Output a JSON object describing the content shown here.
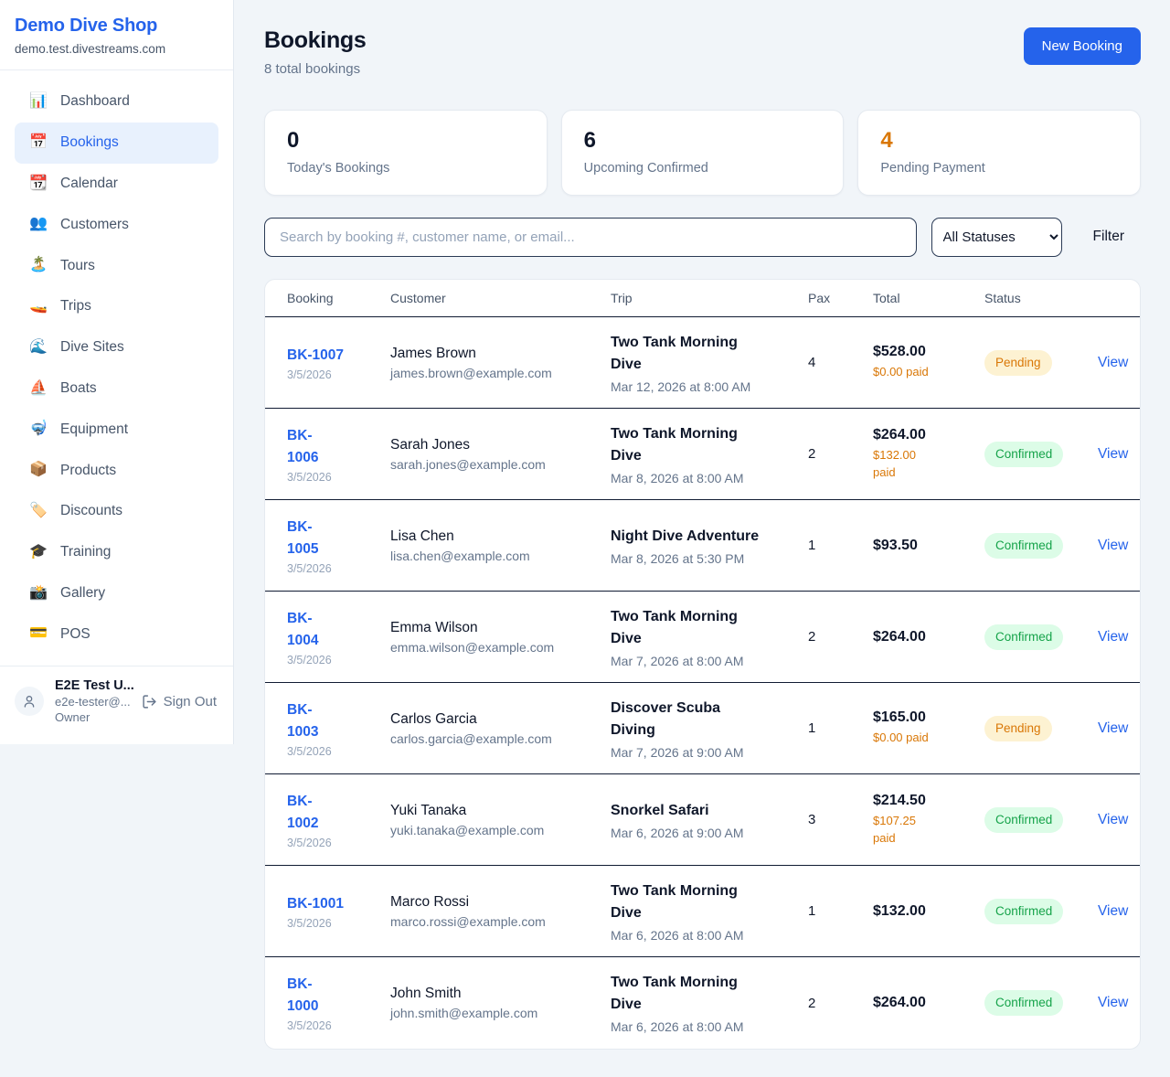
{
  "sidebar": {
    "brand": "Demo Dive Shop",
    "domain": "demo.test.divestreams.com",
    "nav": [
      {
        "label": "Dashboard",
        "icon": "bar-chart-icon",
        "glyph": "📊",
        "active": false
      },
      {
        "label": "Bookings",
        "icon": "calendar-date-icon",
        "glyph": "📅",
        "active": true
      },
      {
        "label": "Calendar",
        "icon": "tear-off-calendar-icon",
        "glyph": "📆",
        "active": false
      },
      {
        "label": "Customers",
        "icon": "people-icon",
        "glyph": "👥",
        "active": false
      },
      {
        "label": "Tours",
        "icon": "island-icon",
        "glyph": "🏝️",
        "active": false
      },
      {
        "label": "Trips",
        "icon": "speedboat-icon",
        "glyph": "🚤",
        "active": false
      },
      {
        "label": "Dive Sites",
        "icon": "wave-icon",
        "glyph": "🌊",
        "active": false
      },
      {
        "label": "Boats",
        "icon": "sailboat-icon",
        "glyph": "⛵",
        "active": false
      },
      {
        "label": "Equipment",
        "icon": "diving-mask-icon",
        "glyph": "🤿",
        "active": false
      },
      {
        "label": "Products",
        "icon": "package-icon",
        "glyph": "📦",
        "active": false
      },
      {
        "label": "Discounts",
        "icon": "tag-icon",
        "glyph": "🏷️",
        "active": false
      },
      {
        "label": "Training",
        "icon": "graduation-cap-icon",
        "glyph": "🎓",
        "active": false
      },
      {
        "label": "Gallery",
        "icon": "camera-icon",
        "glyph": "📸",
        "active": false
      },
      {
        "label": "POS",
        "icon": "credit-card-icon",
        "glyph": "💳",
        "active": false
      }
    ],
    "user": {
      "name": "E2E Test U...",
      "email": "e2e-tester@...",
      "role": "Owner",
      "sign_out": "Sign Out"
    }
  },
  "header": {
    "title": "Bookings",
    "subtitle": "8 total bookings",
    "new_booking": "New Booking"
  },
  "stats": [
    {
      "value": "0",
      "label": "Today's Bookings",
      "highlight": false
    },
    {
      "value": "6",
      "label": "Upcoming Confirmed",
      "highlight": false
    },
    {
      "value": "4",
      "label": "Pending Payment",
      "highlight": true
    }
  ],
  "toolbar": {
    "search_placeholder": "Search by booking #, customer name, or email...",
    "status_filter": "All Statuses",
    "filter": "Filter"
  },
  "table": {
    "columns": [
      "Booking",
      "Customer",
      "Trip",
      "Pax",
      "Total",
      "Status",
      ""
    ],
    "rows": [
      {
        "booking": "BK-1007",
        "date": "3/5/2026",
        "customer": "James Brown",
        "email": "james.brown@example.com",
        "trip": "Two Tank Morning\nDive",
        "trip_time": "Mar 12, 2026 at 8:00 AM",
        "pax": "4",
        "total": "$528.00",
        "paid": "$0.00 paid",
        "status": "Pending",
        "action": "View"
      },
      {
        "booking": "BK-\n1006",
        "date": "3/5/2026",
        "customer": "Sarah Jones",
        "email": "sarah.jones@example.com",
        "trip": "Two Tank Morning\nDive",
        "trip_time": "Mar 8, 2026 at 8:00 AM",
        "pax": "2",
        "total": "$264.00",
        "paid": "$132.00\npaid",
        "status": "Confirmed",
        "action": "View"
      },
      {
        "booking": "BK-\n1005",
        "date": "3/5/2026",
        "customer": "Lisa Chen",
        "email": "lisa.chen@example.com",
        "trip": "Night Dive Adventure",
        "trip_time": "Mar 8, 2026 at 5:30 PM",
        "pax": "1",
        "total": "$93.50",
        "paid": null,
        "status": "Confirmed",
        "action": "View"
      },
      {
        "booking": "BK-\n1004",
        "date": "3/5/2026",
        "customer": "Emma Wilson",
        "email": "emma.wilson@example.com",
        "trip": "Two Tank Morning\nDive",
        "trip_time": "Mar 7, 2026 at 8:00 AM",
        "pax": "2",
        "total": "$264.00",
        "paid": null,
        "status": "Confirmed",
        "action": "View"
      },
      {
        "booking": "BK-\n1003",
        "date": "3/5/2026",
        "customer": "Carlos Garcia",
        "email": "carlos.garcia@example.com",
        "trip": "Discover Scuba\nDiving",
        "trip_time": "Mar 7, 2026 at 9:00 AM",
        "pax": "1",
        "total": "$165.00",
        "paid": "$0.00 paid",
        "status": "Pending",
        "action": "View"
      },
      {
        "booking": "BK-\n1002",
        "date": "3/5/2026",
        "customer": "Yuki Tanaka",
        "email": "yuki.tanaka@example.com",
        "trip": "Snorkel Safari",
        "trip_time": "Mar 6, 2026 at 9:00 AM",
        "pax": "3",
        "total": "$214.50",
        "paid": "$107.25 paid",
        "status": "Confirmed",
        "action": "View"
      },
      {
        "booking": "BK-1001",
        "date": "3/5/2026",
        "customer": "Marco Rossi",
        "email": "marco.rossi@example.com",
        "trip": "Two Tank Morning\nDive",
        "trip_time": "Mar 6, 2026 at 8:00 AM",
        "pax": "1",
        "total": "$132.00",
        "paid": null,
        "status": "Confirmed",
        "action": "View"
      },
      {
        "booking": "BK-\n1000",
        "date": "3/5/2026",
        "customer": "John Smith",
        "email": "john.smith@example.com",
        "trip": "Two Tank Morning\nDive",
        "trip_time": "Mar 6, 2026 at 8:00 AM",
        "pax": "2",
        "total": "$264.00",
        "paid": null,
        "status": "Confirmed",
        "action": "View"
      }
    ]
  },
  "colors": {
    "accent": "#2563eb",
    "pending_text": "#d97706",
    "pending_bg": "#fdf2d2",
    "confirmed_text": "#16a34a",
    "confirmed_bg": "#dcfce7",
    "page_bg": "#f1f5f9"
  }
}
